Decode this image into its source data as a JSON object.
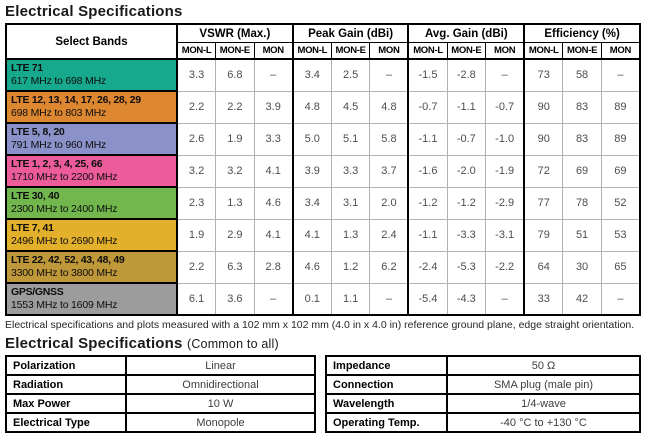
{
  "title": "Electrical Specifications",
  "main_table": {
    "select_bands_header": "Select Bands",
    "groups": [
      "VSWR (Max.)",
      "Peak Gain (dBi)",
      "Avg. Gain (dBi)",
      "Efficiency (%)"
    ],
    "subcols": [
      "MON-L",
      "MON-E",
      "MON"
    ],
    "rows": [
      {
        "band": "LTE 71",
        "freq": "617 MHz to 698 MHz",
        "color": "#17A98E",
        "values": [
          "3.3",
          "6.8",
          "–",
          "3.4",
          "2.5",
          "–",
          "-1.5",
          "-2.8",
          "–",
          "73",
          "58",
          "–"
        ]
      },
      {
        "band": "LTE 12, 13, 14, 17, 26, 28, 29",
        "freq": "698 MHz to 803 MHz",
        "color": "#DE8731",
        "values": [
          "2.2",
          "2.2",
          "3.9",
          "4.8",
          "4.5",
          "4.8",
          "-0.7",
          "-1.1",
          "-0.7",
          "90",
          "83",
          "89"
        ]
      },
      {
        "band": "LTE 5, 8, 20",
        "freq": "791 MHz to 960 MHz",
        "color": "#8A92C9",
        "values": [
          "2.6",
          "1.9",
          "3.3",
          "5.0",
          "5.1",
          "5.8",
          "-1.1",
          "-0.7",
          "-1.0",
          "90",
          "83",
          "89"
        ]
      },
      {
        "band": "LTE 1, 2, 3, 4, 25, 66",
        "freq": "1710 MHz to 2200 MHz",
        "color": "#EC5C9B",
        "values": [
          "3.2",
          "3.2",
          "4.1",
          "3.9",
          "3.3",
          "3.7",
          "-1.6",
          "-2.0",
          "-1.9",
          "72",
          "69",
          "69"
        ]
      },
      {
        "band": "LTE 30, 40",
        "freq": "2300 MHz to 2400 MHz",
        "color": "#72B74D",
        "values": [
          "2.3",
          "1.3",
          "4.6",
          "3.4",
          "3.1",
          "2.0",
          "-1.2",
          "-1.2",
          "-2.9",
          "77",
          "78",
          "52"
        ]
      },
      {
        "band": "LTE 7, 41",
        "freq": "2496 MHz to 2690 MHz",
        "color": "#E3B02B",
        "values": [
          "1.9",
          "2.9",
          "4.1",
          "4.1",
          "1.3",
          "2.4",
          "-1.1",
          "-3.3",
          "-3.1",
          "79",
          "51",
          "53"
        ]
      },
      {
        "band": "LTE 22, 42, 52, 43, 48, 49",
        "freq": "3300 MHz to 3800 MHz",
        "color": "#BE9839",
        "values": [
          "2.2",
          "6.3",
          "2.8",
          "4.6",
          "1.2",
          "6.2",
          "-2.4",
          "-5.3",
          "-2.2",
          "64",
          "30",
          "65"
        ]
      },
      {
        "band": "GPS/GNSS",
        "freq": "1553 MHz to 1609 MHz",
        "color": "#9C9C9C",
        "values": [
          "6.1",
          "3.6",
          "–",
          "0.1",
          "1.1",
          "–",
          "-5.4",
          "-4.3",
          "–",
          "33",
          "42",
          "–"
        ]
      }
    ]
  },
  "note": "Electrical specifications and plots measured with a 102 mm x 102 mm (4.0 in x 4.0 in) reference ground plane, edge straight orientation.",
  "common": {
    "title": "Electrical Specifications",
    "suffix": "(Common to all)",
    "left": [
      {
        "label": "Polarization",
        "value": "Linear"
      },
      {
        "label": "Radiation",
        "value": "Omnidirectional"
      },
      {
        "label": "Max Power",
        "value": "10 W"
      },
      {
        "label": "Electrical Type",
        "value": "Monopole"
      }
    ],
    "right": [
      {
        "label": "Impedance",
        "value": "50 Ω"
      },
      {
        "label": "Connection",
        "value": "SMA plug (male pin)"
      },
      {
        "label": "Wavelength",
        "value": "1/4-wave"
      },
      {
        "label": "Operating Temp.",
        "value": "-40 °C to +130 °C"
      }
    ]
  }
}
